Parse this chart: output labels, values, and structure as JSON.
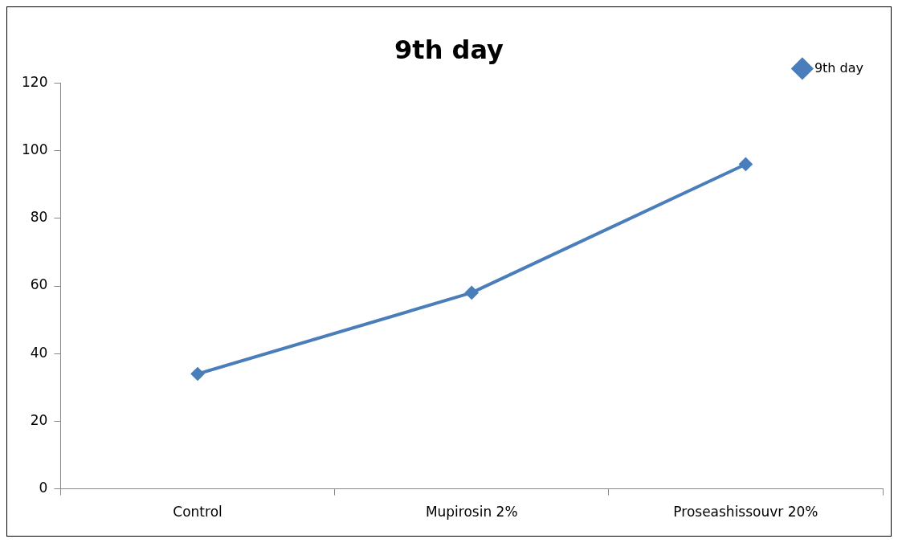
{
  "chart_data": {
    "type": "line",
    "title": "9th day",
    "categories": [
      "Control",
      "Mupirosin 2%",
      "Proseashissouvr 20%"
    ],
    "series": [
      {
        "name": "9th day",
        "color": "#4a7ebb",
        "values": [
          34,
          58,
          96
        ]
      }
    ],
    "ylim": [
      0,
      120
    ],
    "yticks": [
      0,
      20,
      40,
      60,
      80,
      100,
      120
    ],
    "grid": false,
    "legend": "top right",
    "marker": "diamond",
    "line_style": "solid"
  }
}
